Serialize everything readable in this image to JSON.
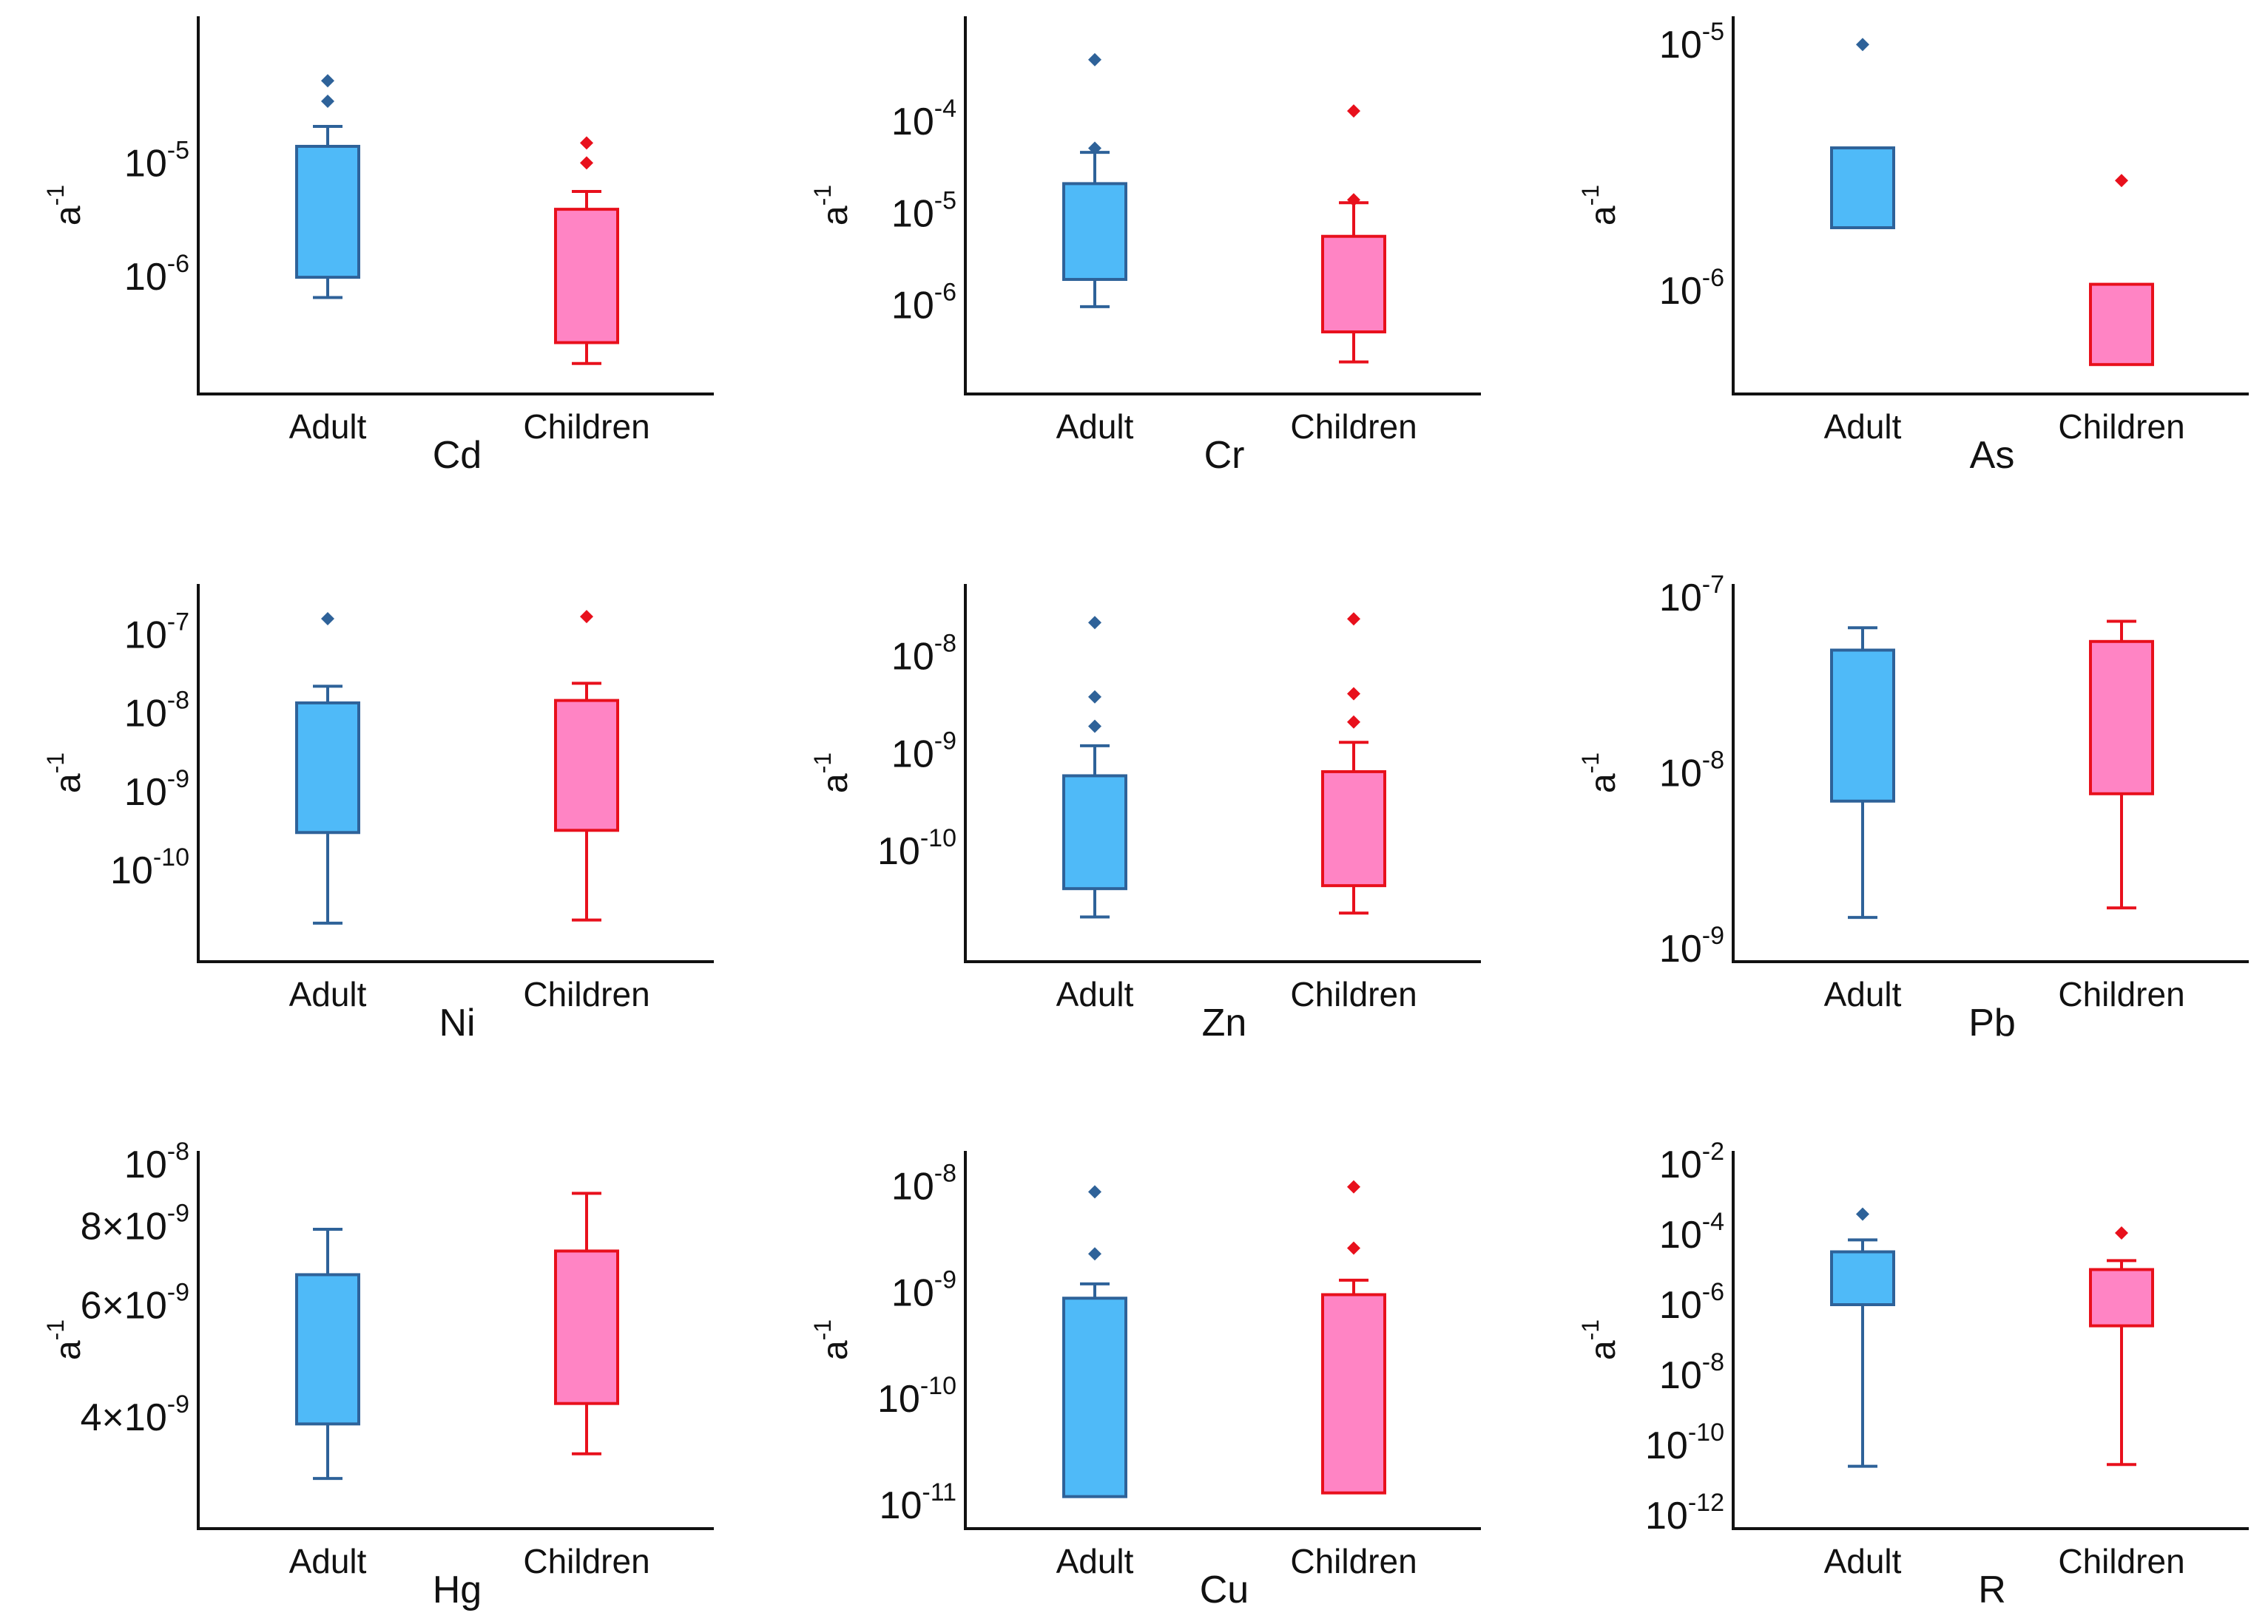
{
  "chart_data": [
    {
      "type": "box",
      "title": "Cd",
      "ylabel": "a",
      "ylabel_exponent": "-1",
      "yscale": "log",
      "ylim": [
        1.2e-07,
        0.00015
      ],
      "yticks": [
        {
          "base": "10",
          "exp": "-5",
          "value": 1e-05
        },
        {
          "base": "10",
          "exp": "-6",
          "value": 1e-06
        }
      ],
      "categories": [
        "Adult",
        "Children"
      ],
      "boxes": [
        {
          "name": "Adult",
          "whisker_low": 6.5e-07,
          "q1": 9.8e-07,
          "q3": 1.4e-05,
          "whisker_high": 2.1e-05,
          "outliers": [
            3.5e-05,
            5.3e-05
          ]
        },
        {
          "name": "Children",
          "whisker_low": 1.7e-07,
          "q1": 2.6e-07,
          "q3": 3.9e-06,
          "whisker_high": 5.6e-06,
          "outliers": [
            1e-05,
            1.5e-05
          ]
        }
      ]
    },
    {
      "type": "box",
      "title": "Cr",
      "ylabel": "a",
      "ylabel_exponent": "-1",
      "yscale": "log",
      "ylim": [
        1.5e-07,
        0.001
      ],
      "yticks": [
        {
          "base": "10",
          "exp": "-4",
          "value": 0.0001
        },
        {
          "base": "10",
          "exp": "-5",
          "value": 1e-05
        },
        {
          "base": "10",
          "exp": "-6",
          "value": 1e-06
        }
      ],
      "categories": [
        "Adult",
        "Children"
      ],
      "boxes": [
        {
          "name": "Adult",
          "whisker_low": 9.6e-07,
          "q1": 1.9e-06,
          "q3": 2.1e-05,
          "whisker_high": 4.6e-05,
          "outliers": [
            5.1e-05,
            0.00047
          ]
        },
        {
          "name": "Children",
          "whisker_low": 2.4e-07,
          "q1": 5.1e-07,
          "q3": 5.6e-06,
          "whisker_high": 1.3e-05,
          "outliers": [
            1.4e-05,
            0.00013
          ]
        }
      ]
    },
    {
      "type": "box",
      "title": "As",
      "ylabel": "a",
      "ylabel_exponent": "-1",
      "yscale": "log",
      "ylim": [
        4.3e-07,
        1.15e-05
      ],
      "yticks": [
        {
          "base": "10",
          "exp": "-5",
          "value": 1e-05
        },
        {
          "base": "10",
          "exp": "-6",
          "value": 1e-06
        }
      ],
      "categories": [
        "Adult",
        "Children"
      ],
      "boxes": [
        {
          "name": "Adult",
          "whisker_low": 1.8e-06,
          "q1": 1.8e-06,
          "q3": 3.8e-06,
          "whisker_high": 3.8e-06,
          "outliers": [
            1e-05
          ]
        },
        {
          "name": "Children",
          "whisker_low": 5e-07,
          "q1": 5e-07,
          "q3": 1.06e-06,
          "whisker_high": 1.06e-06,
          "outliers": [
            2.8e-06
          ]
        }
      ]
    },
    {
      "type": "box",
      "title": "Ni",
      "ylabel": "a",
      "ylabel_exponent": "-1",
      "yscale": "log",
      "ylim": [
        1e-11,
        3e-07
      ],
      "yticks": [
        {
          "base": "10",
          "exp": "-7",
          "value": 1e-07
        },
        {
          "base": "10",
          "exp": "-8",
          "value": 1e-08
        },
        {
          "base": "10",
          "exp": "-9",
          "value": 1e-09
        },
        {
          "base": "10",
          "exp": "-10",
          "value": 1e-10
        }
      ],
      "categories": [
        "Adult",
        "Children"
      ],
      "boxes": [
        {
          "name": "Adult",
          "whisker_low": 2.1e-11,
          "q1": 3e-10,
          "q3": 1.35e-08,
          "whisker_high": 2.2e-08,
          "outliers": [
            1.6e-07
          ]
        },
        {
          "name": "Children",
          "whisker_low": 2.3e-11,
          "q1": 3.2e-10,
          "q3": 1.45e-08,
          "whisker_high": 2.4e-08,
          "outliers": [
            1.7e-07
          ]
        }
      ]
    },
    {
      "type": "box",
      "title": "Zn",
      "ylabel": "a",
      "ylabel_exponent": "-1",
      "yscale": "log",
      "ylim": [
        1e-11,
        4e-08
      ],
      "yticks": [
        {
          "base": "10",
          "exp": "-8",
          "value": 1e-08
        },
        {
          "base": "10",
          "exp": "-9",
          "value": 1e-09
        },
        {
          "base": "10",
          "exp": "-10",
          "value": 1e-10
        }
      ],
      "categories": [
        "Adult",
        "Children"
      ],
      "boxes": [
        {
          "name": "Adult",
          "whisker_low": 2.1e-11,
          "q1": 4.1e-11,
          "q3": 5.9e-10,
          "whisker_high": 1.2e-09,
          "outliers": [
            1.9e-09,
            3.8e-09,
            2.2e-08
          ]
        },
        {
          "name": "Children",
          "whisker_low": 2.3e-11,
          "q1": 4.4e-11,
          "q3": 6.5e-10,
          "whisker_high": 1.3e-09,
          "outliers": [
            2.1e-09,
            4.1e-09,
            2.4e-08
          ]
        }
      ]
    },
    {
      "type": "box",
      "title": "Pb",
      "ylabel": "a",
      "ylabel_exponent": "-1",
      "yscale": "log",
      "ylim": [
        1e-09,
        1e-07
      ],
      "yticks": [
        {
          "base": "10",
          "exp": "-7",
          "value": 1e-07
        },
        {
          "base": "10",
          "exp": "-8",
          "value": 1e-08
        },
        {
          "base": "10",
          "exp": "-9",
          "value": 1e-09
        }
      ],
      "categories": [
        "Adult",
        "Children"
      ],
      "boxes": [
        {
          "name": "Adult",
          "whisker_low": 1.5e-09,
          "q1": 6.9e-09,
          "q3": 5e-08,
          "whisker_high": 6.7e-08,
          "outliers": []
        },
        {
          "name": "Children",
          "whisker_low": 1.7e-09,
          "q1": 7.6e-09,
          "q3": 5.6e-08,
          "whisker_high": 7.3e-08,
          "outliers": []
        }
      ]
    },
    {
      "type": "box",
      "title": "Hg",
      "ylabel": "a",
      "ylabel_exponent": "-1",
      "yscale": "log",
      "ylim": [
        2.8e-09,
        1e-08
      ],
      "yticks": [
        {
          "base": "10",
          "exp": "-8",
          "value": 1e-08
        },
        {
          "base": "8×10",
          "exp": "-9",
          "value": 8e-09
        },
        {
          "base": "6×10",
          "exp": "-9",
          "value": 6e-09
        },
        {
          "base": "4×10",
          "exp": "-9",
          "value": 4e-09
        }
      ],
      "categories": [
        "Adult",
        "Children"
      ],
      "boxes": [
        {
          "name": "Adult",
          "whisker_low": 3.2e-09,
          "q1": 3.9e-09,
          "q3": 6.7e-09,
          "whisker_high": 7.9e-09,
          "outliers": []
        },
        {
          "name": "Children",
          "whisker_low": 3.5e-09,
          "q1": 4.2e-09,
          "q3": 7.3e-09,
          "whisker_high": 9e-09,
          "outliers": []
        }
      ]
    },
    {
      "type": "box",
      "title": "Cu",
      "ylabel": "a",
      "ylabel_exponent": "-1",
      "yscale": "log",
      "ylim": [
        8e-12,
        1.6e-08
      ],
      "yticks": [
        {
          "base": "10",
          "exp": "-8",
          "value": 1e-08
        },
        {
          "base": "10",
          "exp": "-9",
          "value": 1e-09
        },
        {
          "base": "10",
          "exp": "-10",
          "value": 1e-10
        },
        {
          "base": "10",
          "exp": "-11",
          "value": 1e-11
        }
      ],
      "categories": [
        "Adult",
        "Children"
      ],
      "boxes": [
        {
          "name": "Adult",
          "whisker_low": 1.2e-11,
          "q1": 1.2e-11,
          "q3": 8.8e-10,
          "whisker_high": 1.2e-09,
          "outliers": [
            2.3e-09,
            8.8e-09
          ]
        },
        {
          "name": "Children",
          "whisker_low": 1.3e-11,
          "q1": 1.3e-11,
          "q3": 9.5e-10,
          "whisker_high": 1.3e-09,
          "outliers": [
            2.6e-09,
            9.8e-09
          ]
        }
      ]
    },
    {
      "type": "box",
      "title": "R",
      "ylabel": "a",
      "ylabel_exponent": "-1",
      "yscale": "log",
      "ylim": [
        1e-12,
        0.01
      ],
      "yticks": [
        {
          "base": "10",
          "exp": "-2",
          "value": 0.01
        },
        {
          "base": "10",
          "exp": "-4",
          "value": 0.0001
        },
        {
          "base": "10",
          "exp": "-6",
          "value": 1e-06
        },
        {
          "base": "10",
          "exp": "-8",
          "value": 1e-08
        },
        {
          "base": "10",
          "exp": "-10",
          "value": 1e-10
        },
        {
          "base": "10",
          "exp": "-12",
          "value": 1e-12
        }
      ],
      "categories": [
        "Adult",
        "Children"
      ],
      "boxes": [
        {
          "name": "Adult",
          "whisker_low": 2.5e-11,
          "q1": 1e-06,
          "q3": 3.2e-05,
          "whisker_high": 7e-05,
          "outliers": [
            0.00038
          ]
        },
        {
          "name": "Children",
          "whisker_low": 2.8e-11,
          "q1": 2.5e-07,
          "q3": 1e-05,
          "whisker_high": 1.8e-05,
          "outliers": [
            0.00011
          ]
        }
      ]
    }
  ],
  "colors": {
    "adult_fill": "#4FBAF8",
    "adult_edge": "#2E6299",
    "children_fill": "#FF84C4",
    "children_edge": "#E8101C",
    "axis": "#111111"
  }
}
